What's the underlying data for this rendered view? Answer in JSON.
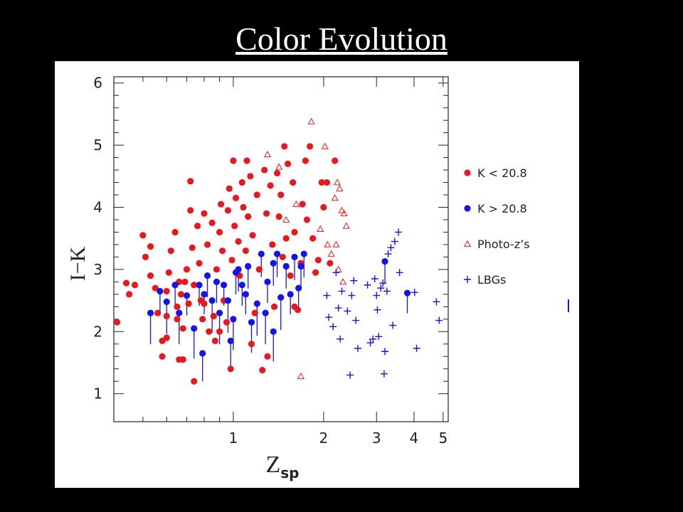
{
  "slide": {
    "title": "Color Evolution"
  },
  "colors": {
    "red": "#e8191c",
    "blue": "#1414e6",
    "background": "#000000",
    "panel": "#ffffff"
  },
  "chart_data": {
    "type": "scatter",
    "x_scale": "log",
    "xlim": [
      0.4,
      5.2
    ],
    "ylim": [
      0.55,
      6.1
    ],
    "xlabel": "Z",
    "xlabel_sub": "sp",
    "ylabel": "I−K",
    "x_ticks": [
      {
        "v": 1,
        "label": "1"
      },
      {
        "v": 2,
        "label": "2"
      },
      {
        "v": 3,
        "label": "3"
      },
      {
        "v": 4,
        "label": "4"
      },
      {
        "v": 5,
        "label": "5"
      }
    ],
    "x_minor": [
      0.5,
      0.6,
      0.7,
      0.8,
      0.9
    ],
    "y_ticks": [
      {
        "v": 1,
        "label": "1"
      },
      {
        "v": 2,
        "label": "2"
      },
      {
        "v": 3,
        "label": "3"
      },
      {
        "v": 4,
        "label": "4"
      },
      {
        "v": 5,
        "label": "5"
      },
      {
        "v": 6,
        "label": "6"
      }
    ],
    "legend": [
      {
        "label": "K < 20.8",
        "marker": "dot",
        "color": "#e8191c"
      },
      {
        "label": "K > 20.8",
        "marker": "dot",
        "color": "#1414e6"
      },
      {
        "label": "Photo-z’s",
        "marker": "triangle",
        "color": "#e8191c"
      },
      {
        "label": "LBGs",
        "marker": "plus",
        "color": "#1414e6"
      }
    ],
    "series": [
      {
        "name": "K < 20.8",
        "marker": "dot",
        "color": "#e8191c",
        "points": [
          [
            0.41,
            2.15
          ],
          [
            0.44,
            2.78
          ],
          [
            0.45,
            2.6
          ],
          [
            0.47,
            2.75
          ],
          [
            0.5,
            3.55
          ],
          [
            0.51,
            3.2
          ],
          [
            0.53,
            3.37
          ],
          [
            0.53,
            2.9
          ],
          [
            0.55,
            2.7
          ],
          [
            0.56,
            2.3
          ],
          [
            0.58,
            1.85
          ],
          [
            0.58,
            1.6
          ],
          [
            0.6,
            1.9
          ],
          [
            0.6,
            2.25
          ],
          [
            0.6,
            2.65
          ],
          [
            0.61,
            2.95
          ],
          [
            0.62,
            3.3
          ],
          [
            0.64,
            3.6
          ],
          [
            0.65,
            2.4
          ],
          [
            0.65,
            2.2
          ],
          [
            0.66,
            1.55
          ],
          [
            0.67,
            2.6
          ],
          [
            0.68,
            1.55
          ],
          [
            0.68,
            2.05
          ],
          [
            0.69,
            2.8
          ],
          [
            0.7,
            3.0
          ],
          [
            0.71,
            2.45
          ],
          [
            0.72,
            3.95
          ],
          [
            0.72,
            4.42
          ],
          [
            0.73,
            3.35
          ],
          [
            0.74,
            2.75
          ],
          [
            0.74,
            1.2
          ],
          [
            0.76,
            3.7
          ],
          [
            0.77,
            3.1
          ],
          [
            0.78,
            2.5
          ],
          [
            0.79,
            2.2
          ],
          [
            0.8,
            3.9
          ],
          [
            0.8,
            2.45
          ],
          [
            0.82,
            3.4
          ],
          [
            0.83,
            2.0
          ],
          [
            0.85,
            3.75
          ],
          [
            0.86,
            2.25
          ],
          [
            0.87,
            1.85
          ],
          [
            0.88,
            3.0
          ],
          [
            0.9,
            3.6
          ],
          [
            0.91,
            4.05
          ],
          [
            0.92,
            3.3
          ],
          [
            0.93,
            2.5
          ],
          [
            0.95,
            2.15
          ],
          [
            0.96,
            3.95
          ],
          [
            0.97,
            4.3
          ],
          [
            0.98,
            1.4
          ],
          [
            0.99,
            3.15
          ],
          [
            1.0,
            4.75
          ],
          [
            1.01,
            3.7
          ],
          [
            1.02,
            4.15
          ],
          [
            1.04,
            3.45
          ],
          [
            1.05,
            2.9
          ],
          [
            1.07,
            4.4
          ],
          [
            1.08,
            4.0
          ],
          [
            1.1,
            3.3
          ],
          [
            1.11,
            4.75
          ],
          [
            1.12,
            3.85
          ],
          [
            1.14,
            4.5
          ],
          [
            1.15,
            1.8
          ],
          [
            1.16,
            3.55
          ],
          [
            1.18,
            2.3
          ],
          [
            1.2,
            4.2
          ],
          [
            1.22,
            3.0
          ],
          [
            1.25,
            1.38
          ],
          [
            1.27,
            4.6
          ],
          [
            1.29,
            3.9
          ],
          [
            1.3,
            1.6
          ],
          [
            1.33,
            4.35
          ],
          [
            1.35,
            3.4
          ],
          [
            1.37,
            2.4
          ],
          [
            1.4,
            4.55
          ],
          [
            1.42,
            3.85
          ],
          [
            1.44,
            4.2
          ],
          [
            1.46,
            3.2
          ],
          [
            1.48,
            4.98
          ],
          [
            1.5,
            3.5
          ],
          [
            1.52,
            4.7
          ],
          [
            1.55,
            2.9
          ],
          [
            1.58,
            4.4
          ],
          [
            1.6,
            3.6
          ],
          [
            1.64,
            2.35
          ],
          [
            1.68,
            3.1
          ],
          [
            1.7,
            4.05
          ],
          [
            1.74,
            4.75
          ],
          [
            1.76,
            3.8
          ],
          [
            1.8,
            4.98
          ],
          [
            1.84,
            3.5
          ],
          [
            1.88,
            2.95
          ],
          [
            1.92,
            3.15
          ],
          [
            1.97,
            4.4
          ],
          [
            2.0,
            4.0
          ],
          [
            2.05,
            4.4
          ],
          [
            2.1,
            3.1
          ],
          [
            2.18,
            4.75
          ],
          [
            1.6,
            2.4
          ],
          [
            0.8,
            2.6
          ],
          [
            0.9,
            2.0
          ],
          [
            0.66,
            2.8
          ]
        ]
      },
      {
        "name": "K > 20.8",
        "marker": "dot",
        "color": "#1414e6",
        "points": [
          [
            0.53,
            2.3
          ],
          [
            0.57,
            2.65
          ],
          [
            0.6,
            2.48
          ],
          [
            0.64,
            2.75
          ],
          [
            0.66,
            2.3
          ],
          [
            0.7,
            2.58
          ],
          [
            0.74,
            2.05
          ],
          [
            0.77,
            2.75
          ],
          [
            0.79,
            1.65
          ],
          [
            0.8,
            2.6
          ],
          [
            0.82,
            2.9
          ],
          [
            0.85,
            2.5
          ],
          [
            0.88,
            2.8
          ],
          [
            0.9,
            2.3
          ],
          [
            0.93,
            2.75
          ],
          [
            0.96,
            2.5
          ],
          [
            0.98,
            1.85
          ],
          [
            1.0,
            2.2
          ],
          [
            1.02,
            2.95
          ],
          [
            1.04,
            3.0
          ],
          [
            1.07,
            2.75
          ],
          [
            1.1,
            2.6
          ],
          [
            1.12,
            3.05
          ],
          [
            1.15,
            2.15
          ],
          [
            1.2,
            2.45
          ],
          [
            1.24,
            3.25
          ],
          [
            1.28,
            2.3
          ],
          [
            1.3,
            2.8
          ],
          [
            1.36,
            3.1
          ],
          [
            1.4,
            3.25
          ],
          [
            1.44,
            2.55
          ],
          [
            1.5,
            3.05
          ],
          [
            1.55,
            2.6
          ],
          [
            1.6,
            3.2
          ],
          [
            1.65,
            2.7
          ],
          [
            1.68,
            3.05
          ],
          [
            1.72,
            3.25
          ],
          [
            1.36,
            2.0
          ],
          [
            3.2,
            3.13
          ],
          [
            3.8,
            2.62
          ]
        ]
      },
      {
        "name": "Photo-z's",
        "marker": "triangle",
        "color": "#e8191c",
        "points": [
          [
            1.3,
            4.85
          ],
          [
            1.42,
            4.65
          ],
          [
            1.5,
            3.8
          ],
          [
            1.62,
            4.05
          ],
          [
            1.68,
            1.28
          ],
          [
            1.82,
            5.38
          ],
          [
            1.95,
            3.65
          ],
          [
            2.02,
            4.98
          ],
          [
            2.06,
            3.4
          ],
          [
            2.12,
            3.25
          ],
          [
            2.18,
            4.15
          ],
          [
            2.22,
            4.4
          ],
          [
            2.26,
            4.3
          ],
          [
            2.3,
            3.95
          ],
          [
            2.34,
            3.9
          ],
          [
            2.38,
            3.7
          ],
          [
            2.24,
            3.0
          ],
          [
            2.32,
            2.8
          ],
          [
            2.2,
            3.4
          ]
        ]
      },
      {
        "name": "LBGs",
        "marker": "plus",
        "color": "#1414e6",
        "points": [
          [
            2.05,
            2.58
          ],
          [
            2.08,
            2.23
          ],
          [
            2.15,
            2.08
          ],
          [
            2.2,
            2.95
          ],
          [
            2.24,
            2.38
          ],
          [
            2.27,
            1.88
          ],
          [
            2.3,
            2.65
          ],
          [
            2.4,
            2.33
          ],
          [
            2.45,
            1.3
          ],
          [
            2.48,
            2.58
          ],
          [
            2.52,
            2.82
          ],
          [
            2.56,
            2.18
          ],
          [
            2.6,
            1.73
          ],
          [
            2.8,
            2.75
          ],
          [
            2.86,
            1.82
          ],
          [
            2.92,
            1.88
          ],
          [
            2.96,
            2.85
          ],
          [
            3.0,
            2.58
          ],
          [
            3.02,
            2.35
          ],
          [
            3.05,
            1.92
          ],
          [
            3.1,
            2.7
          ],
          [
            3.15,
            2.78
          ],
          [
            3.18,
            1.32
          ],
          [
            3.2,
            1.68
          ],
          [
            3.25,
            2.65
          ],
          [
            3.28,
            3.25
          ],
          [
            3.35,
            3.35
          ],
          [
            3.4,
            2.1
          ],
          [
            3.45,
            3.45
          ],
          [
            3.55,
            3.6
          ],
          [
            4.02,
            2.63
          ],
          [
            4.08,
            1.73
          ],
          [
            4.75,
            2.48
          ],
          [
            4.85,
            2.18
          ],
          [
            3.58,
            2.95
          ]
        ]
      }
    ]
  }
}
